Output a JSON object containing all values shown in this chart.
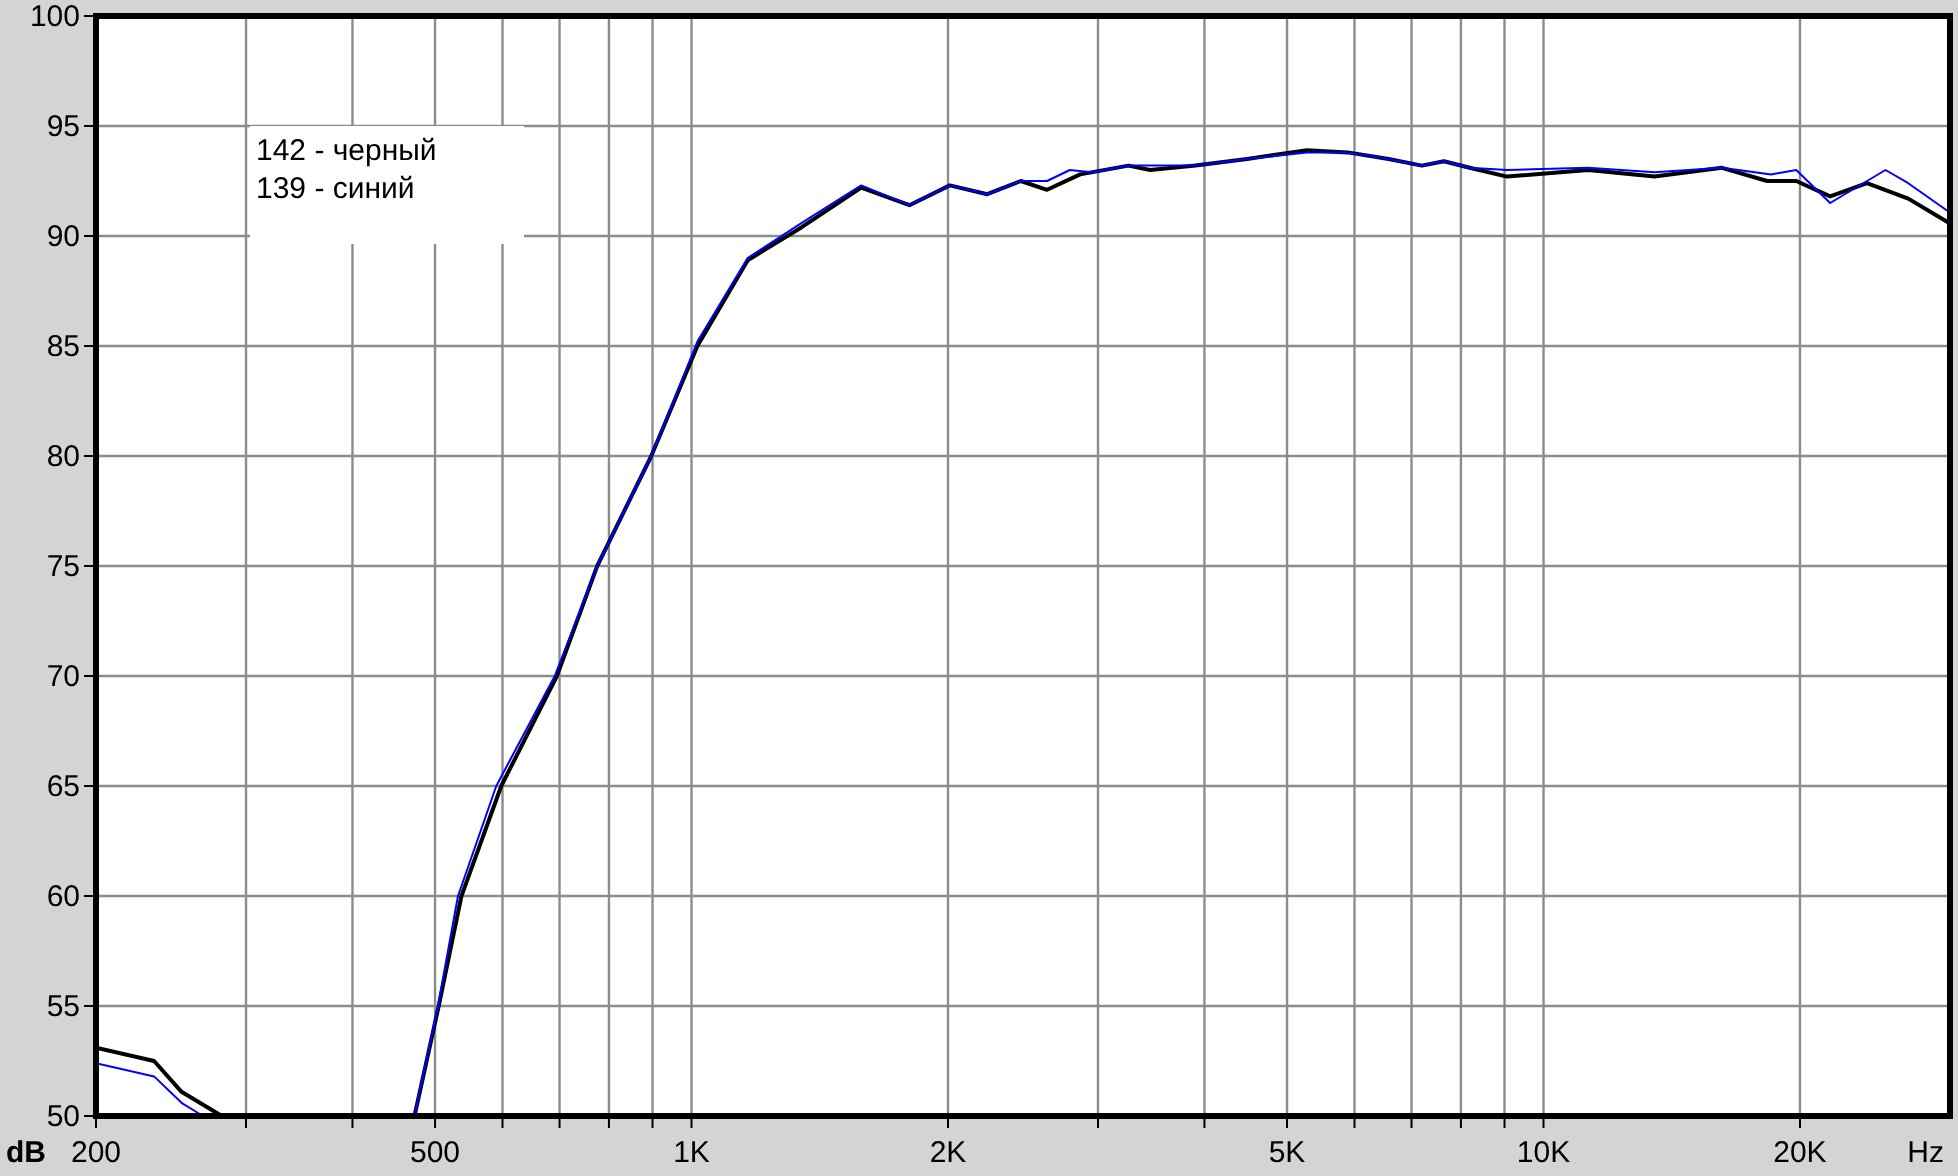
{
  "chart_data": {
    "type": "line",
    "xlabel": "Hz",
    "ylabel": "dB",
    "log": "x",
    "grid": true,
    "xlim": [
      200,
      30000
    ],
    "ylim": [
      50,
      100
    ],
    "xticks": [
      200,
      {
        "value": 300,
        "label": null
      },
      {
        "value": 400,
        "label": null
      },
      500,
      {
        "value": 600,
        "label": null
      },
      {
        "value": 700,
        "label": null
      },
      {
        "value": 800,
        "label": null
      },
      {
        "value": 900,
        "label": null
      },
      {
        "value": 1000,
        "label": "1K"
      },
      {
        "value": 2000,
        "label": "2K"
      },
      {
        "value": 3000,
        "label": null
      },
      {
        "value": 4000,
        "label": null
      },
      {
        "value": 5000,
        "label": "5K"
      },
      {
        "value": 6000,
        "label": null
      },
      {
        "value": 7000,
        "label": null
      },
      {
        "value": 8000,
        "label": null
      },
      {
        "value": 9000,
        "label": null
      },
      {
        "value": 10000,
        "label": "10K"
      },
      {
        "value": 20000,
        "label": "20K"
      }
    ],
    "yticks": [
      50,
      55,
      60,
      65,
      70,
      75,
      80,
      85,
      90,
      95,
      100
    ],
    "annotations": [
      "142 - черный",
      "139 - синий"
    ],
    "series": [
      {
        "color": "#000000",
        "x": [
          200,
          234,
          252,
          281,
          473,
          505,
          537,
          598,
          695,
          775,
          897,
          1016,
          1164,
          1347,
          1582,
          1802,
          2010,
          2224,
          2435,
          2614,
          2859,
          3257,
          3454,
          3904,
          4489,
          5276,
          5890,
          6580,
          7200,
          7640,
          8190,
          9060,
          11280,
          13500,
          16200,
          18300,
          19800,
          21700,
          23970,
          26800,
          29900
        ],
        "values": [
          53.1,
          52.5,
          51.1,
          50,
          50,
          55,
          60,
          65,
          70,
          75,
          80,
          85,
          88.9,
          90.4,
          92.2,
          91.4,
          92.3,
          91.9,
          92.5,
          92.1,
          92.8,
          93.2,
          93,
          93.2,
          93.5,
          93.9,
          93.8,
          93.5,
          93.2,
          93.4,
          93.1,
          92.7,
          93,
          92.7,
          93.1,
          92.5,
          92.5,
          91.8,
          92.4,
          91.7,
          90.6
        ]
      },
      {
        "color": "#0000ff",
        "x": [
          200,
          234,
          252,
          267,
          473,
          504,
          532,
          590,
          691,
          775,
          897,
          1016,
          1164,
          1347,
          1582,
          1802,
          2010,
          2224,
          2435,
          2614,
          2780,
          2950,
          3257,
          3904,
          4489,
          5276,
          5890,
          6580,
          7200,
          7640,
          8190,
          9060,
          11280,
          13500,
          16200,
          18500,
          19800,
          21700,
          25200,
          26800,
          29900
        ],
        "values": [
          52.4,
          51.8,
          50.6,
          50,
          50,
          55,
          60,
          65,
          70,
          75,
          80,
          85.2,
          89,
          90.6,
          92.3,
          91.4,
          92.3,
          91.9,
          92.5,
          92.5,
          93,
          92.9,
          93.2,
          93.2,
          93.5,
          93.8,
          93.8,
          93.5,
          93.2,
          93.4,
          93.1,
          93,
          93.1,
          92.9,
          93.1,
          92.8,
          93,
          91.5,
          93,
          92.4,
          91.1
        ]
      }
    ]
  }
}
